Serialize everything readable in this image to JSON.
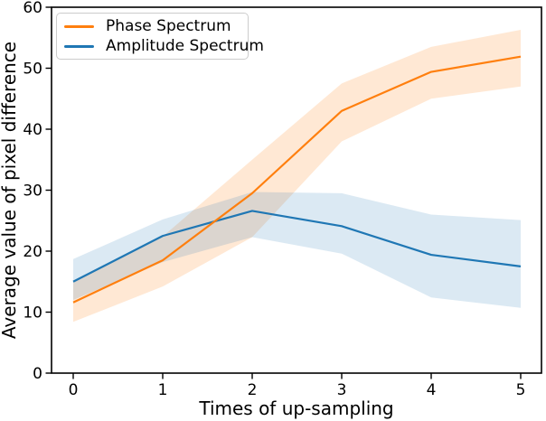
{
  "figure": {
    "xlabel": "Times of up-sampling",
    "ylabel": "Average value of pixel difference",
    "legend": [
      {
        "label": "Phase Spectrum",
        "color": "#ff7f0e"
      },
      {
        "label": "Amplitude Spectrum",
        "color": "#1f77b4"
      }
    ]
  },
  "chart_data": {
    "type": "line",
    "title": "",
    "xlabel": "Times of up-sampling",
    "ylabel": "Average value of pixel difference",
    "x": [
      0,
      1,
      2,
      3,
      4,
      5
    ],
    "series": [
      {
        "name": "Phase Spectrum",
        "color": "#ff7f0e",
        "band_color": "rgba(255,127,14,0.18)",
        "values": [
          11.6,
          18.5,
          29.5,
          43.0,
          49.4,
          51.9
        ],
        "band_lower": [
          8.4,
          14.2,
          22.3,
          38.0,
          45.0,
          47.0
        ],
        "band_upper": [
          14.9,
          22.4,
          35.0,
          47.5,
          53.5,
          56.3
        ]
      },
      {
        "name": "Amplitude Spectrum",
        "color": "#1f77b4",
        "band_color": "rgba(31,119,180,0.16)",
        "values": [
          15.0,
          22.5,
          26.6,
          24.1,
          19.4,
          17.5
        ],
        "band_lower": [
          12.0,
          18.2,
          22.3,
          19.6,
          12.4,
          10.7
        ],
        "band_upper": [
          18.7,
          25.2,
          29.7,
          29.5,
          26.0,
          25.1
        ]
      }
    ],
    "xlim": [
      -0.24,
      5.23
    ],
    "ylim": [
      0,
      60
    ],
    "xticks": {
      "values": [
        0,
        1,
        2,
        3,
        4,
        5
      ],
      "labels": [
        "0",
        "1",
        "2",
        "3",
        "4",
        "5"
      ]
    },
    "yticks": {
      "values": [
        0,
        10,
        20,
        30,
        40,
        50,
        60
      ],
      "labels": [
        "0",
        "10",
        "20",
        "30",
        "40",
        "50",
        "60"
      ]
    },
    "grid": false,
    "legend_position": "upper left",
    "draw_order": [
      "amplitude-below",
      "phase-on-top"
    ]
  }
}
